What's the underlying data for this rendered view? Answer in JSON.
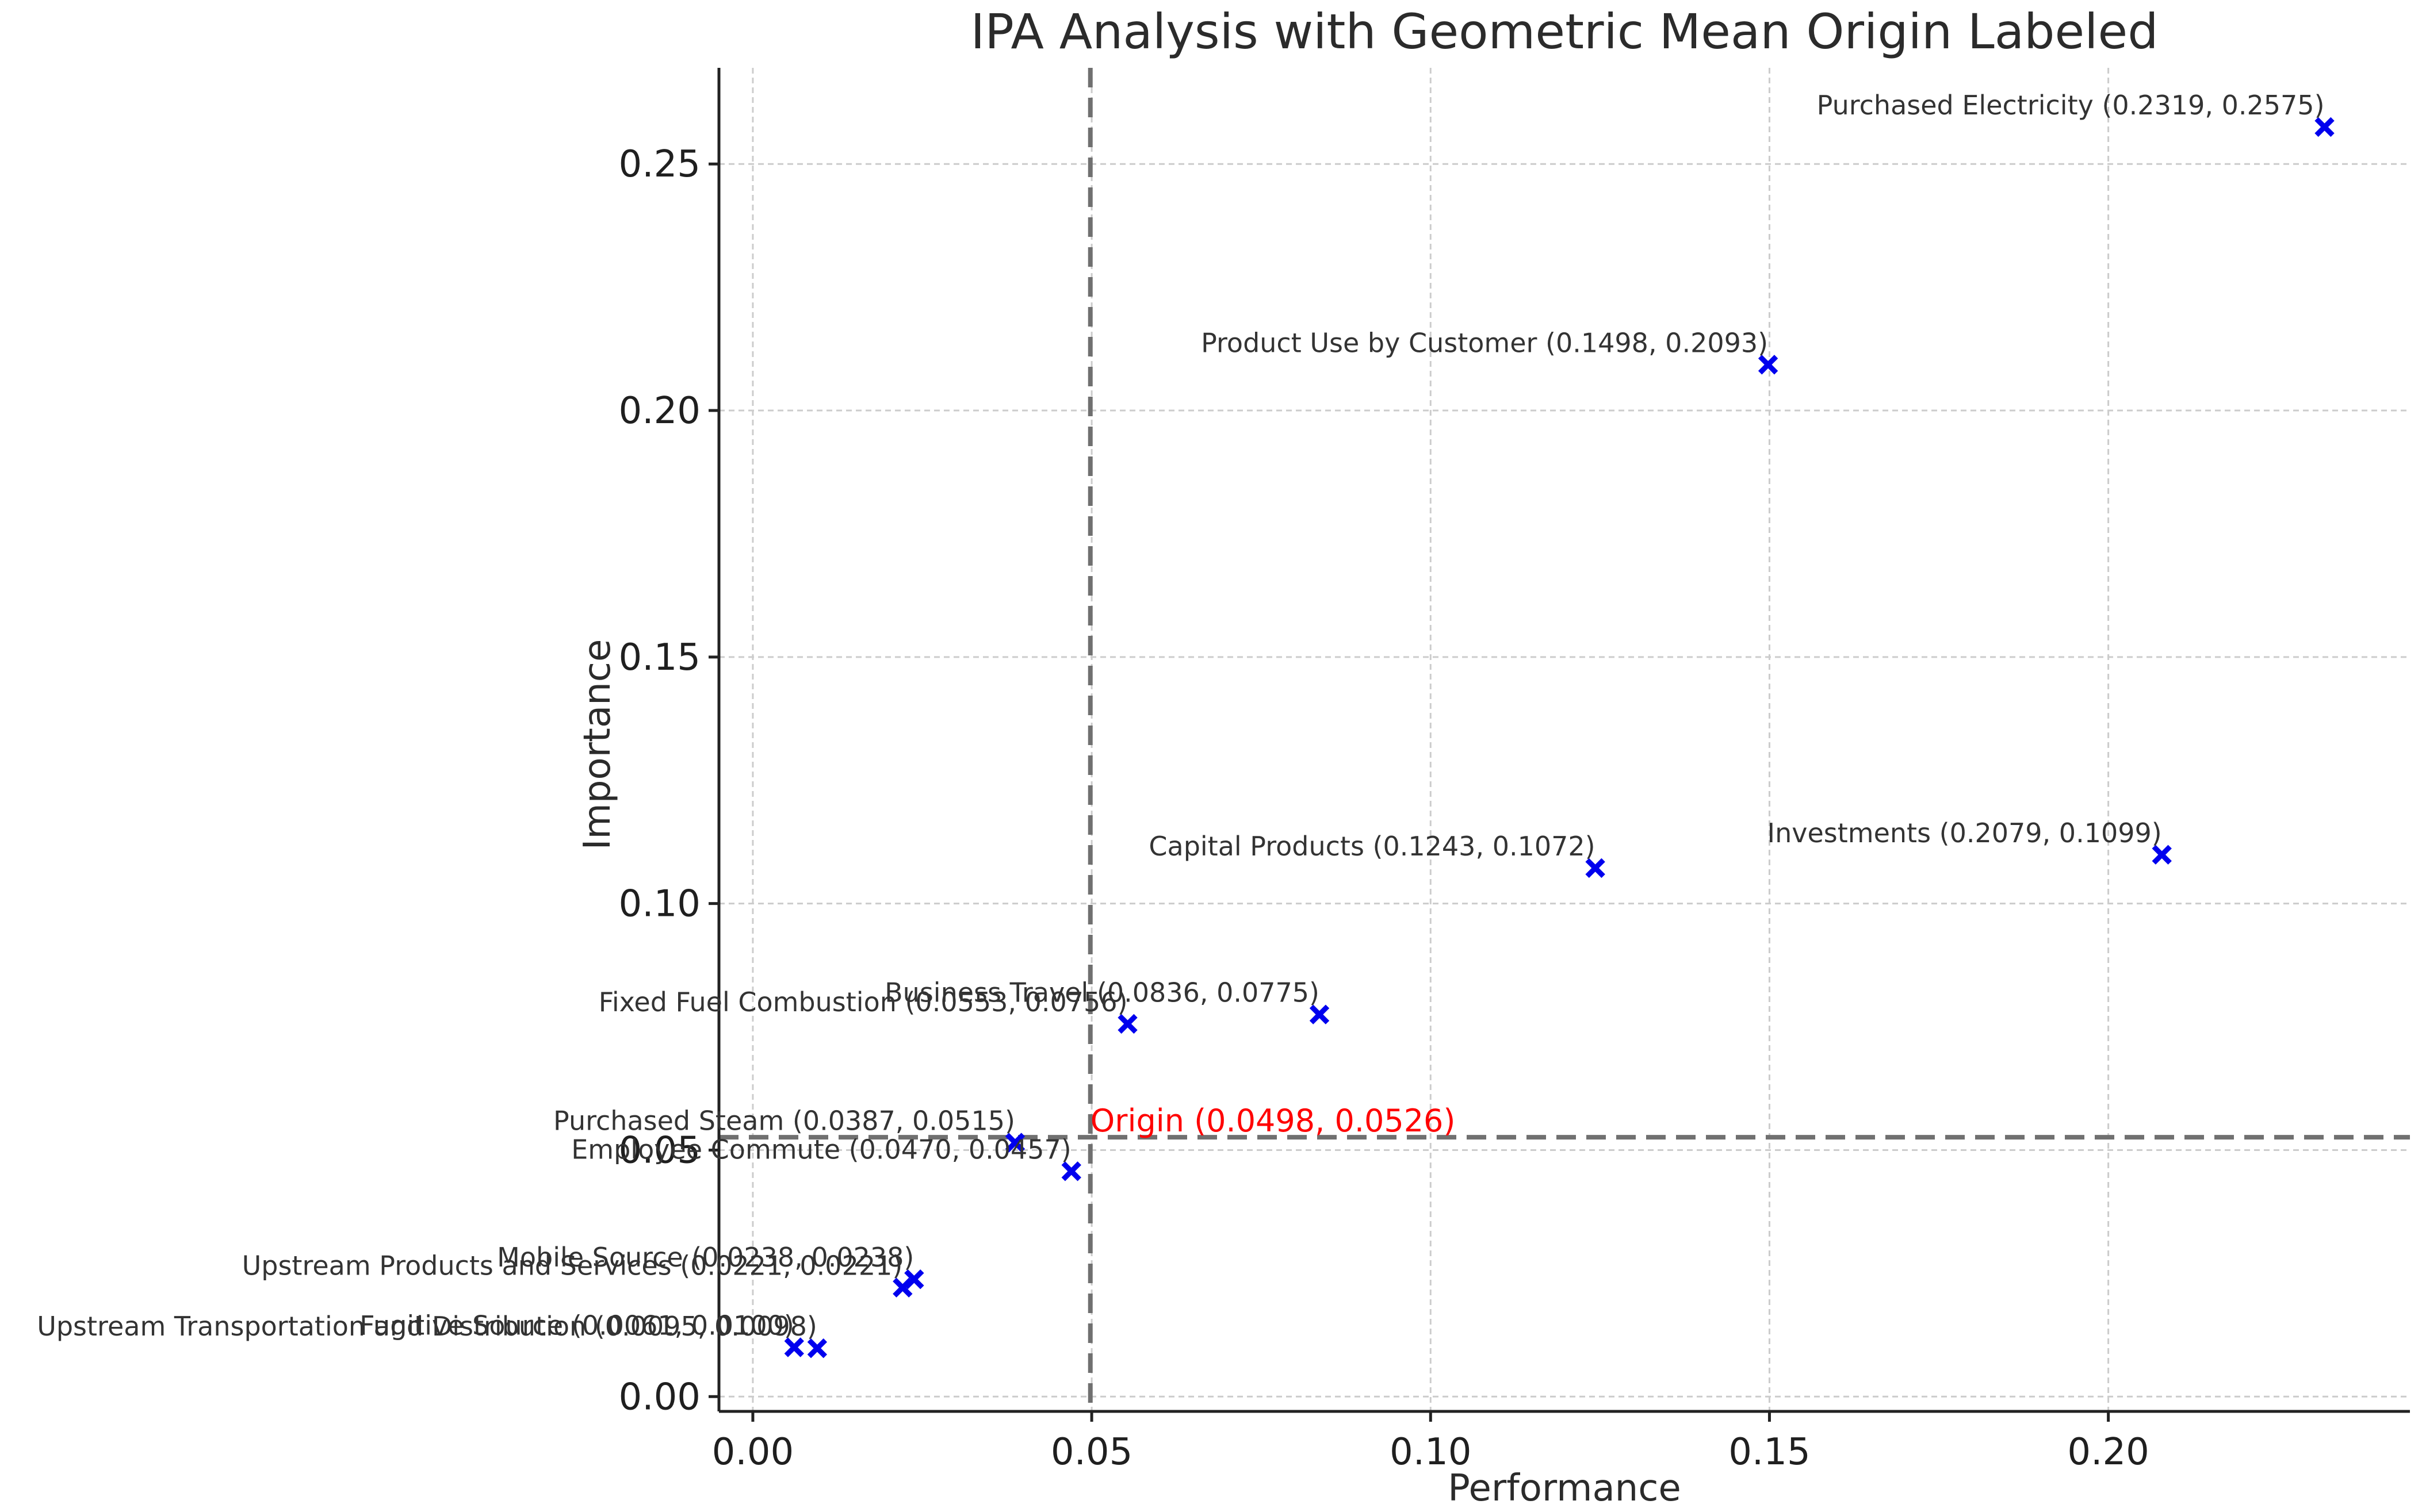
{
  "chart_data": {
    "type": "scatter",
    "title": "IPA Analysis with Geometric Mean Origin Labeled",
    "xlabel": "Performance",
    "ylabel": "Importance",
    "xlim": [
      -0.005,
      0.2445
    ],
    "ylim": [
      -0.003,
      0.2695
    ],
    "xticks": [
      0.0,
      0.05,
      0.1,
      0.15,
      0.2
    ],
    "xtick_labels": [
      "0.00",
      "0.05",
      "0.10",
      "0.15",
      "0.20"
    ],
    "yticks": [
      0.0,
      0.05,
      0.1,
      0.15,
      0.2,
      0.25
    ],
    "ytick_labels": [
      "0.00",
      "0.05",
      "0.10",
      "0.15",
      "0.20",
      "0.25"
    ],
    "grid": true,
    "marker_color": "#0000ee",
    "origin_color": "#ff0000",
    "origin": {
      "x": 0.0498,
      "y": 0.0526,
      "label": "Origin (0.0498, 0.0526)"
    },
    "points": [
      {
        "name": "Purchased Electricity",
        "x": 0.2319,
        "y": 0.2575,
        "label": "Purchased Electricity (0.2319, 0.2575)"
      },
      {
        "name": "Product Use by Customer",
        "x": 0.1498,
        "y": 0.2093,
        "label": "Product Use by Customer (0.1498, 0.2093)"
      },
      {
        "name": "Investments",
        "x": 0.2079,
        "y": 0.1099,
        "label": "Investments (0.2079, 0.1099)"
      },
      {
        "name": "Capital Products",
        "x": 0.1243,
        "y": 0.1072,
        "label": "Capital Products (0.1243, 0.1072)"
      },
      {
        "name": "Business Travel",
        "x": 0.0836,
        "y": 0.0775,
        "label": "Business Travel (0.0836, 0.0775)"
      },
      {
        "name": "Fixed Fuel Combustion",
        "x": 0.0553,
        "y": 0.0756,
        "label": "Fixed Fuel Combustion (0.0553, 0.0756)"
      },
      {
        "name": "Purchased Steam",
        "x": 0.0387,
        "y": 0.0515,
        "label": "Purchased Steam (0.0387, 0.0515)"
      },
      {
        "name": "Employee Commute",
        "x": 0.047,
        "y": 0.0457,
        "label": "Employee Commute (0.0470, 0.0457)"
      },
      {
        "name": "Upstream Products and Services",
        "x": 0.0221,
        "y": 0.0221,
        "label": "Upstream Products and Services (0.0221, 0.0221)"
      },
      {
        "name": "Mobile Source",
        "x": 0.0238,
        "y": 0.0238,
        "label": "Mobile Source (0.0238, 0.0238)"
      },
      {
        "name": "Fugitive Source",
        "x": 0.0061,
        "y": 0.01,
        "label": "Fugitive Source (0.0061, 0.0100)"
      },
      {
        "name": "Upstream Transportation and Distribution",
        "x": 0.0095,
        "y": 0.0098,
        "label": "Upstream Transportation and Distribution (0.0095, 0.0098)"
      }
    ]
  }
}
